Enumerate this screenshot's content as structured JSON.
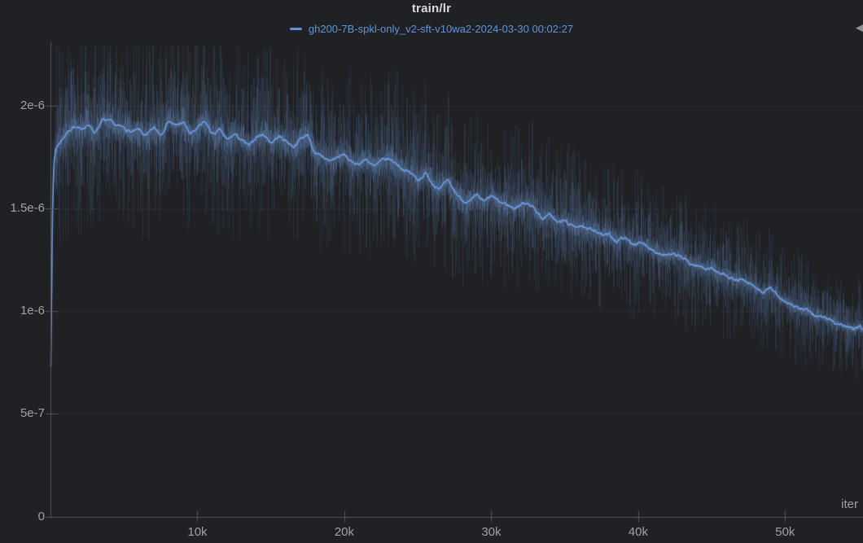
{
  "panel": {
    "title": "train/lr",
    "legend": {
      "series_label": "gh200-7B-spkl-only_v2-sft-v10wa2-2024-03-30 00:02:27"
    }
  },
  "icons": {
    "panel_menu_glyph": "◀"
  },
  "colors": {
    "background": "#1f2124",
    "series_blue": "#6f9de0",
    "legend_blue": "#5f94da",
    "title_text": "#dadbdd",
    "axis_label": "#9fa1a5",
    "axis_line": "#54565a",
    "grid_line": "rgba(255,255,255,0.05)",
    "raw_noise": "#6c96d0"
  },
  "chart_data": {
    "type": "line",
    "title": "train/lr",
    "xlabel": "iter",
    "ylabel": "",
    "xlim": [
      0,
      55300
    ],
    "ylim": [
      0,
      2.31e-06
    ],
    "grid": true,
    "legend_position": "top",
    "x_ticks": [
      {
        "value": 10000,
        "label": "10k"
      },
      {
        "value": 20000,
        "label": "20k"
      },
      {
        "value": 30000,
        "label": "30k"
      },
      {
        "value": 40000,
        "label": "40k"
      },
      {
        "value": 50000,
        "label": "50k"
      }
    ],
    "y_ticks": [
      {
        "value": 0,
        "label": "0"
      },
      {
        "value": 5e-07,
        "label": "5e-7"
      },
      {
        "value": 1e-06,
        "label": "1e-6"
      },
      {
        "value": 1.5e-06,
        "label": "1.5e-6"
      },
      {
        "value": 2e-06,
        "label": "2e-6"
      }
    ],
    "raw_band": {
      "description": "unsmoothed per-step lr samples form a noisy band around the smoothed line",
      "typical_halfwidth": 2.5e-07,
      "max_halfwidth": 4.6e-07
    },
    "series": [
      {
        "name": "gh200-7B-spkl-only_v2-sft-v10wa2-2024-03-30 00:02:27",
        "color": "#6f9de0",
        "points": [
          [
            0,
            7.3e-07
          ],
          [
            100,
            1.45e-06
          ],
          [
            200,
            1.72e-06
          ],
          [
            350,
            1.79e-06
          ],
          [
            500,
            1.81e-06
          ],
          [
            1000,
            1.86e-06
          ],
          [
            1500,
            1.9e-06
          ],
          [
            2000,
            1.88e-06
          ],
          [
            2500,
            1.91e-06
          ],
          [
            3000,
            1.87e-06
          ],
          [
            3500,
            1.93e-06
          ],
          [
            4000,
            1.92e-06
          ],
          [
            4500,
            1.9e-06
          ],
          [
            5000,
            1.89e-06
          ],
          [
            5500,
            1.87e-06
          ],
          [
            6000,
            1.88e-06
          ],
          [
            6500,
            1.85e-06
          ],
          [
            7000,
            1.89e-06
          ],
          [
            7500,
            1.86e-06
          ],
          [
            8000,
            1.93e-06
          ],
          [
            8500,
            1.9e-06
          ],
          [
            9000,
            1.92e-06
          ],
          [
            9500,
            1.86e-06
          ],
          [
            10000,
            1.89e-06
          ],
          [
            10500,
            1.92e-06
          ],
          [
            11000,
            1.86e-06
          ],
          [
            11500,
            1.88e-06
          ],
          [
            12000,
            1.83e-06
          ],
          [
            12500,
            1.86e-06
          ],
          [
            13000,
            1.83e-06
          ],
          [
            13500,
            1.8e-06
          ],
          [
            14000,
            1.85e-06
          ],
          [
            14500,
            1.86e-06
          ],
          [
            15000,
            1.82e-06
          ],
          [
            15500,
            1.85e-06
          ],
          [
            16000,
            1.83e-06
          ],
          [
            16500,
            1.8e-06
          ],
          [
            17000,
            1.84e-06
          ],
          [
            17500,
            1.86e-06
          ],
          [
            18000,
            1.76e-06
          ],
          [
            18500,
            1.75e-06
          ],
          [
            19000,
            1.73e-06
          ],
          [
            19500,
            1.75e-06
          ],
          [
            20000,
            1.76e-06
          ],
          [
            20500,
            1.72e-06
          ],
          [
            21000,
            1.72e-06
          ],
          [
            21500,
            1.74e-06
          ],
          [
            22000,
            1.7e-06
          ],
          [
            22500,
            1.73e-06
          ],
          [
            23000,
            1.74e-06
          ],
          [
            23500,
            1.72e-06
          ],
          [
            24000,
            1.69e-06
          ],
          [
            24500,
            1.67e-06
          ],
          [
            25000,
            1.64e-06
          ],
          [
            25500,
            1.67e-06
          ],
          [
            26000,
            1.62e-06
          ],
          [
            26500,
            1.6e-06
          ],
          [
            27000,
            1.63e-06
          ],
          [
            27500,
            1.58e-06
          ],
          [
            28000,
            1.54e-06
          ],
          [
            28500,
            1.53e-06
          ],
          [
            29000,
            1.56e-06
          ],
          [
            29500,
            1.53e-06
          ],
          [
            30000,
            1.56e-06
          ],
          [
            30500,
            1.53e-06
          ],
          [
            31000,
            1.52e-06
          ],
          [
            31500,
            1.5e-06
          ],
          [
            32000,
            1.52e-06
          ],
          [
            32500,
            1.53e-06
          ],
          [
            33000,
            1.49e-06
          ],
          [
            33500,
            1.45e-06
          ],
          [
            34000,
            1.47e-06
          ],
          [
            34500,
            1.43e-06
          ],
          [
            35000,
            1.44e-06
          ],
          [
            35500,
            1.41e-06
          ],
          [
            36000,
            1.42e-06
          ],
          [
            36500,
            1.39e-06
          ],
          [
            37000,
            1.4e-06
          ],
          [
            37500,
            1.37e-06
          ],
          [
            38000,
            1.37e-06
          ],
          [
            38500,
            1.34e-06
          ],
          [
            39000,
            1.36e-06
          ],
          [
            39500,
            1.33e-06
          ],
          [
            40000,
            1.33e-06
          ],
          [
            40500,
            1.32e-06
          ],
          [
            41000,
            1.3e-06
          ],
          [
            41500,
            1.28e-06
          ],
          [
            42000,
            1.27e-06
          ],
          [
            42500,
            1.27e-06
          ],
          [
            43000,
            1.26e-06
          ],
          [
            43500,
            1.23e-06
          ],
          [
            44000,
            1.22e-06
          ],
          [
            44500,
            1.21e-06
          ],
          [
            45000,
            1.21e-06
          ],
          [
            45500,
            1.18e-06
          ],
          [
            46000,
            1.18e-06
          ],
          [
            46500,
            1.15e-06
          ],
          [
            47000,
            1.15e-06
          ],
          [
            47500,
            1.13e-06
          ],
          [
            48000,
            1.11e-06
          ],
          [
            48500,
            1.09e-06
          ],
          [
            49000,
            1.11e-06
          ],
          [
            49500,
            1.07e-06
          ],
          [
            50000,
            1.05e-06
          ],
          [
            50500,
            1.03e-06
          ],
          [
            51000,
            1.01e-06
          ],
          [
            51500,
            1e-06
          ],
          [
            52000,
            9.8e-07
          ],
          [
            52500,
            9.7e-07
          ],
          [
            53000,
            9.6e-07
          ],
          [
            53500,
            9.4e-07
          ],
          [
            54000,
            9.3e-07
          ],
          [
            54500,
            9.1e-07
          ],
          [
            55000,
            9.2e-07
          ],
          [
            55300,
            9.1e-07
          ]
        ]
      }
    ]
  }
}
